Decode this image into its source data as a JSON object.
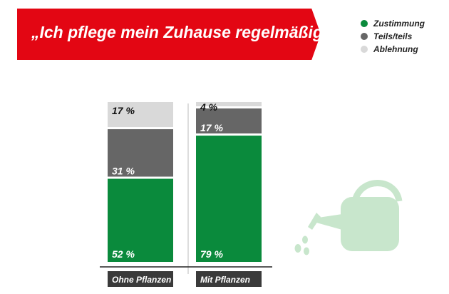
{
  "banner": {
    "title": "„Ich pflege mein Zuhause regelmäßig“"
  },
  "legend": {
    "items": [
      {
        "label": "Zustimmung",
        "color": "#0a8a3c"
      },
      {
        "label": "Teils/teils",
        "color": "#666666"
      },
      {
        "label": "Ablehnung",
        "color": "#d9d9d9"
      }
    ]
  },
  "decoration": {
    "icon": "watering-can-icon",
    "color": "#c8e6cc"
  },
  "chart_data": {
    "type": "bar",
    "stacked": true,
    "unit": "%",
    "categories": [
      "Ohne Pflanzen",
      "Mit Pflanzen"
    ],
    "series": [
      {
        "name": "Zustimmung",
        "color": "#0a8a3c",
        "values": [
          52,
          79
        ],
        "labels": [
          "52 %",
          "79 %"
        ]
      },
      {
        "name": "Teils/teils",
        "color": "#666666",
        "values": [
          31,
          17
        ],
        "labels": [
          "31 %",
          "17 %"
        ]
      },
      {
        "name": "Ablehnung",
        "color": "#d9d9d9",
        "values": [
          17,
          4
        ],
        "labels": [
          "17 %",
          "4 %"
        ]
      }
    ],
    "category_label_bg": "#3a3a3a",
    "ylim": [
      0,
      100
    ],
    "grid": false,
    "legend_position": "top-right"
  }
}
